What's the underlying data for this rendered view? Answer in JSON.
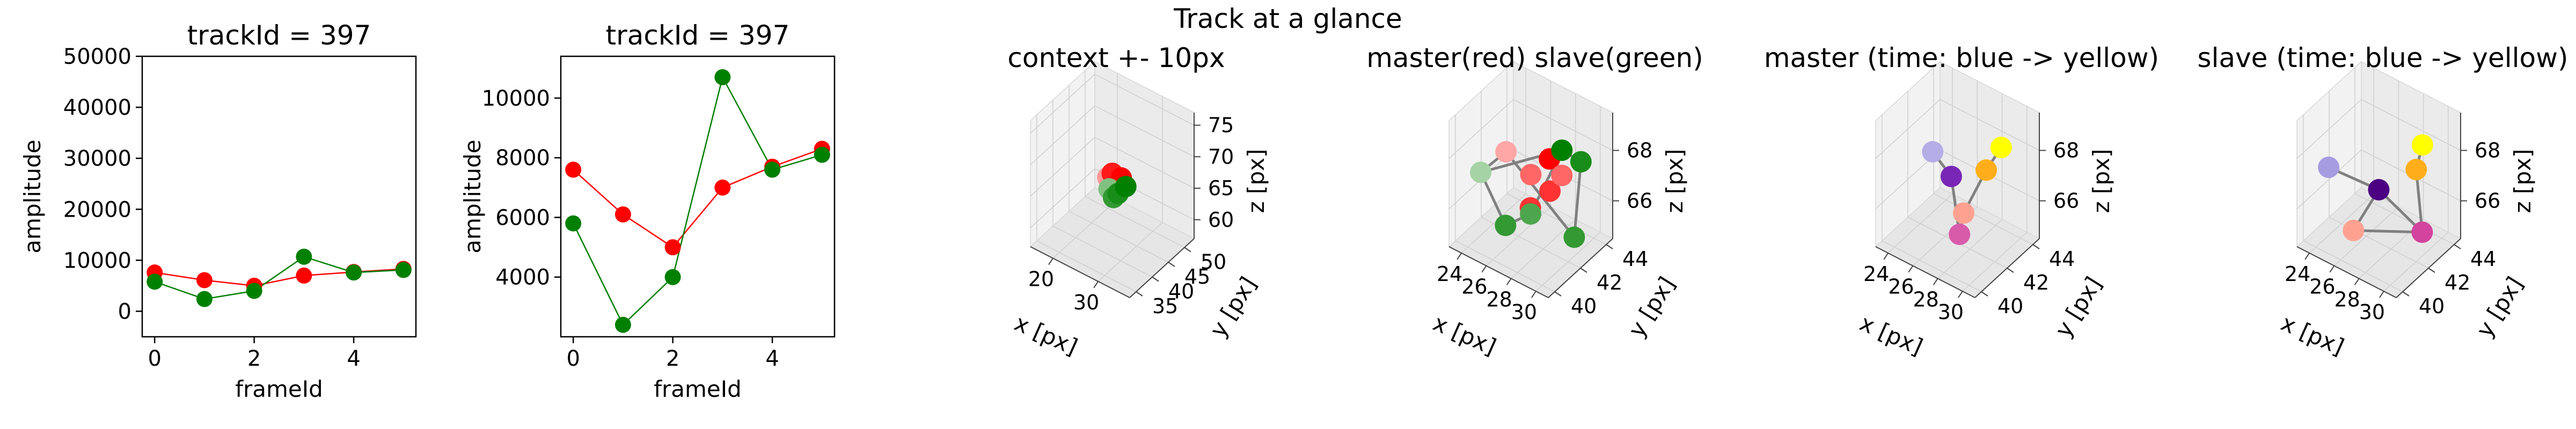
{
  "figure": {
    "suptitle": "Track at a glance"
  },
  "chart_data": [
    {
      "type": "line",
      "title": "trackId = 397",
      "xlabel": "frameId",
      "ylabel": "amplitude",
      "xlim": [
        -0.25,
        5.25
      ],
      "ylim": [
        -5000,
        50000
      ],
      "xticks": [
        0,
        2,
        4
      ],
      "yticks": [
        0,
        10000,
        20000,
        30000,
        40000,
        50000
      ],
      "x": [
        0,
        1,
        2,
        3,
        4,
        5
      ],
      "series": [
        {
          "color": "#ff0000",
          "values": [
            7600,
            6100,
            5000,
            7000,
            7700,
            8300
          ]
        },
        {
          "color": "#008000",
          "values": [
            5800,
            2400,
            4000,
            10700,
            7600,
            8100
          ]
        }
      ]
    },
    {
      "type": "line",
      "title": "trackId = 397",
      "xlabel": "frameId",
      "ylabel": "amplitude",
      "xlim": [
        -0.25,
        5.25
      ],
      "ylim": [
        2000,
        11400
      ],
      "xticks": [
        0,
        2,
        4
      ],
      "yticks": [
        4000,
        6000,
        8000,
        10000
      ],
      "x": [
        0,
        1,
        2,
        3,
        4,
        5
      ],
      "series": [
        {
          "color": "#ff0000",
          "values": [
            7600,
            6100,
            5000,
            7000,
            7700,
            8300
          ]
        },
        {
          "color": "#008000",
          "values": [
            5800,
            2400,
            4000,
            10700,
            7600,
            8100
          ]
        }
      ]
    },
    {
      "type": "scatter3d",
      "title": "context +- 10px",
      "xlabel": "x [px]",
      "ylabel": "y [px]",
      "zlabel": "z [px]",
      "xlim": [
        15,
        37
      ],
      "ylim": [
        33,
        53
      ],
      "zlim": [
        57,
        77
      ],
      "xticks": [
        20,
        30
      ],
      "yticks": [
        35,
        40,
        45,
        50
      ],
      "zticks": [
        60,
        65,
        70,
        75
      ],
      "segments": [
        [
          0,
          1
        ],
        [
          1,
          2
        ],
        [
          2,
          3
        ],
        [
          3,
          4
        ]
      ],
      "points": [
        {
          "x": 25,
          "y": 43,
          "z": 67,
          "color": "#ff0000",
          "alpha": 0.4
        },
        {
          "x": 26,
          "y": 43,
          "z": 68,
          "color": "#ff0000",
          "alpha": 0.9
        },
        {
          "x": 27,
          "y": 43,
          "z": 67,
          "color": "#ff0000",
          "alpha": 0.9
        },
        {
          "x": 28,
          "y": 43,
          "z": 68,
          "color": "#ff0000",
          "alpha": 1
        },
        {
          "x": 26,
          "y": 42,
          "z": 66,
          "color": "#008000",
          "alpha": 0.5
        },
        {
          "x": 27,
          "y": 42,
          "z": 65,
          "color": "#008000",
          "alpha": 0.8
        },
        {
          "x": 28,
          "y": 42,
          "z": 66,
          "color": "#008000",
          "alpha": 0.9
        },
        {
          "x": 29,
          "y": 43,
          "z": 67,
          "color": "#008000",
          "alpha": 1
        }
      ]
    },
    {
      "type": "scatter3d",
      "title": "master(red) slave(green)",
      "xlabel": "x [px]",
      "ylabel": "y [px]",
      "zlabel": "z [px]",
      "xlim": [
        23,
        31
      ],
      "ylim": [
        39.5,
        44.5
      ],
      "zlim": [
        64.5,
        69.5
      ],
      "xticks": [
        24,
        26,
        28,
        30
      ],
      "yticks": [
        40,
        42,
        44
      ],
      "zticks": [
        66,
        68
      ],
      "segments": [
        [
          0,
          6
        ],
        [
          6,
          7
        ],
        [
          7,
          8
        ],
        [
          8,
          9
        ],
        [
          9,
          10
        ],
        [
          10,
          11
        ],
        [
          11,
          0
        ],
        [
          6,
          9
        ]
      ],
      "points": [
        {
          "x": 25,
          "y": 42,
          "z": 67.6,
          "color": "#ff0000",
          "alpha": 0.35
        },
        {
          "x": 27,
          "y": 42,
          "z": 67.2,
          "color": "#ff0000",
          "alpha": 0.6
        },
        {
          "x": 28.5,
          "y": 42,
          "z": 68.2,
          "color": "#ff0000",
          "alpha": 1
        },
        {
          "x": 27.5,
          "y": 43,
          "z": 66.2,
          "color": "#ff0000",
          "alpha": 0.8
        },
        {
          "x": 28,
          "y": 41,
          "z": 66.6,
          "color": "#ff0000",
          "alpha": 0.8
        },
        {
          "x": 29.5,
          "y": 42,
          "z": 67.8,
          "color": "#ff0000",
          "alpha": 0.6
        },
        {
          "x": 24,
          "y": 41,
          "z": 67.0,
          "color": "#008000",
          "alpha": 0.35
        },
        {
          "x": 26,
          "y": 41,
          "z": 65.4,
          "color": "#008000",
          "alpha": 0.8
        },
        {
          "x": 27.5,
          "y": 41.5,
          "z": 66.0,
          "color": "#008000",
          "alpha": 0.7
        },
        {
          "x": 29.5,
          "y": 42,
          "z": 68.8,
          "color": "#008000",
          "alpha": 1
        },
        {
          "x": 30,
          "y": 43,
          "z": 68.0,
          "color": "#008000",
          "alpha": 0.9
        },
        {
          "x": 30.5,
          "y": 42,
          "z": 65.6,
          "color": "#008000",
          "alpha": 0.8
        }
      ]
    },
    {
      "type": "scatter3d",
      "title": "master (time: blue -> yellow)",
      "xlabel": "x [px]",
      "ylabel": "y [px]",
      "zlabel": "z [px]",
      "xlim": [
        23,
        31
      ],
      "ylim": [
        39.5,
        44.5
      ],
      "zlim": [
        64.5,
        69.5
      ],
      "xticks": [
        24,
        26,
        28,
        30
      ],
      "yticks": [
        40,
        42,
        44
      ],
      "zticks": [
        66,
        68
      ],
      "segments": [
        [
          0,
          1
        ],
        [
          1,
          2
        ],
        [
          2,
          3
        ],
        [
          3,
          4
        ],
        [
          4,
          5
        ]
      ],
      "points": [
        {
          "x": 25,
          "y": 42,
          "z": 67.6,
          "color": "#6a5acd",
          "alpha": 0.5
        },
        {
          "x": 26.5,
          "y": 42,
          "z": 67.0,
          "color": "#6a0dad",
          "alpha": 0.9
        },
        {
          "x": 28.2,
          "y": 41,
          "z": 65.6,
          "color": "#c71585",
          "alpha": 0.7
        },
        {
          "x": 27.5,
          "y": 42,
          "z": 65.8,
          "color": "#ff6347",
          "alpha": 0.6
        },
        {
          "x": 28.8,
          "y": 42.5,
          "z": 67.6,
          "color": "#ffa500",
          "alpha": 0.9
        },
        {
          "x": 30,
          "y": 42.5,
          "z": 68.8,
          "color": "#ffff00",
          "alpha": 1
        }
      ]
    },
    {
      "type": "scatter3d",
      "title": "slave (time: blue -> yellow)",
      "xlabel": "x [px]",
      "ylabel": "y [px]",
      "zlabel": "z [px]",
      "xlim": [
        23,
        31
      ],
      "ylim": [
        39.5,
        44.5
      ],
      "zlim": [
        64.5,
        69.5
      ],
      "xticks": [
        24,
        26,
        28,
        30
      ],
      "yticks": [
        40,
        42,
        44
      ],
      "zticks": [
        66,
        68
      ],
      "segments": [
        [
          0,
          1
        ],
        [
          1,
          2
        ],
        [
          2,
          3
        ],
        [
          3,
          4
        ],
        [
          4,
          5
        ],
        [
          1,
          3
        ]
      ],
      "points": [
        {
          "x": 24,
          "y": 41,
          "z": 67.2,
          "color": "#6a5acd",
          "alpha": 0.6
        },
        {
          "x": 27,
          "y": 42,
          "z": 66.6,
          "color": "#4b0082",
          "alpha": 1
        },
        {
          "x": 26,
          "y": 41,
          "z": 65.2,
          "color": "#ff6347",
          "alpha": 0.6
        },
        {
          "x": 30.5,
          "y": 42,
          "z": 65.8,
          "color": "#c71585",
          "alpha": 0.8
        },
        {
          "x": 29.5,
          "y": 42.5,
          "z": 67.8,
          "color": "#ffa500",
          "alpha": 0.9
        },
        {
          "x": 30,
          "y": 42.5,
          "z": 68.9,
          "color": "#ffff00",
          "alpha": 1
        }
      ]
    }
  ]
}
